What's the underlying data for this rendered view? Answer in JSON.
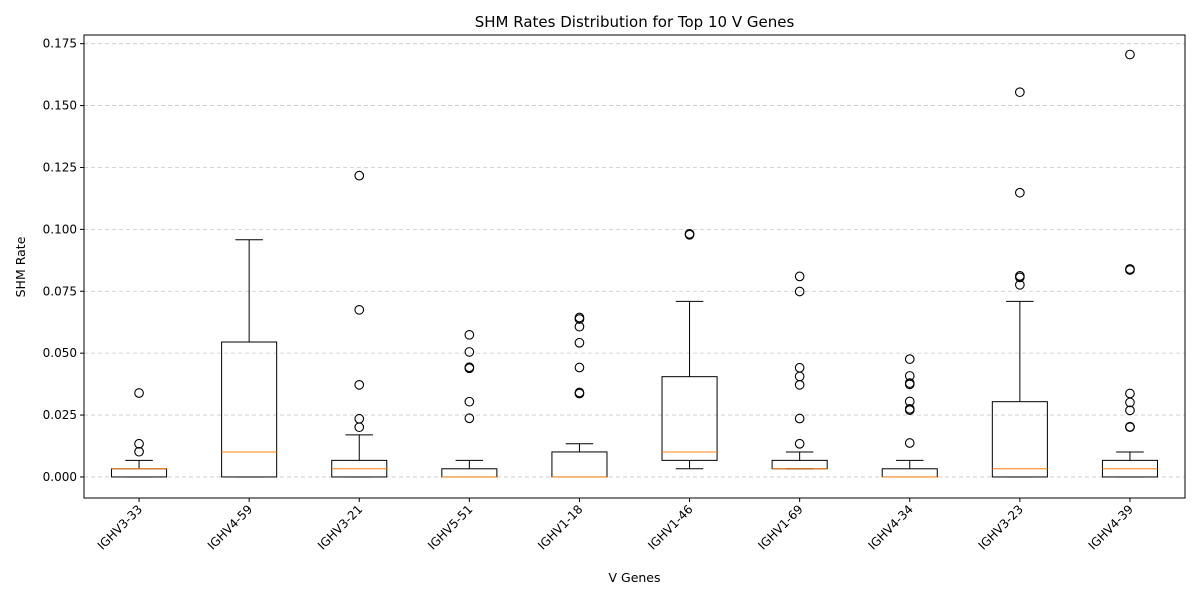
{
  "chart_data": {
    "type": "boxplot",
    "title": "SHM Rates Distribution for Top 10 V Genes",
    "xlabel": "V Genes",
    "ylabel": "SHM Rate",
    "ylim": [
      -0.0085,
      0.1785
    ],
    "yticks": [
      0.0,
      0.025,
      0.05,
      0.075,
      0.1,
      0.125,
      0.15,
      0.175
    ],
    "ytick_labels": [
      "0.000",
      "0.025",
      "0.050",
      "0.075",
      "0.100",
      "0.125",
      "0.150",
      "0.175"
    ],
    "grid": "y-dashed",
    "colors": {
      "box": "#000000",
      "median": "#ff7f0e",
      "grid": "#c8c8c8",
      "flier": "#000000"
    },
    "categories": [
      "IGHV3-33",
      "IGHV4-59",
      "IGHV3-21",
      "IGHV5-51",
      "IGHV1-18",
      "IGHV1-46",
      "IGHV1-69",
      "IGHV4-34",
      "IGHV3-23",
      "IGHV4-39"
    ],
    "boxes": [
      {
        "whislo": 0.0,
        "q1": 0.0,
        "med": 0.0033,
        "q3": 0.0033,
        "whishi": 0.0067,
        "fliers": [
          0.0102,
          0.0134,
          0.0339
        ]
      },
      {
        "whislo": 0.0,
        "q1": 0.0,
        "med": 0.0101,
        "q3": 0.0545,
        "whishi": 0.0958,
        "fliers": []
      },
      {
        "whislo": 0.0,
        "q1": 0.0,
        "med": 0.0033,
        "q3": 0.0067,
        "whishi": 0.017,
        "fliers": [
          0.0201,
          0.0235,
          0.0372,
          0.0675,
          0.1217
        ]
      },
      {
        "whislo": 0.0,
        "q1": 0.0,
        "med": 0.0,
        "q3": 0.0033,
        "whishi": 0.0067,
        "fliers": [
          0.0237,
          0.0304,
          0.0439,
          0.0443,
          0.0505,
          0.0574
        ]
      },
      {
        "whislo": 0.0,
        "q1": 0.0,
        "med": 0.0,
        "q3": 0.0101,
        "whishi": 0.0134,
        "fliers": [
          0.0337,
          0.0341,
          0.0442,
          0.0542,
          0.0607,
          0.0638,
          0.0644
        ]
      },
      {
        "whislo": 0.0033,
        "q1": 0.0067,
        "med": 0.0101,
        "q3": 0.0405,
        "whishi": 0.0709,
        "fliers": [
          0.0978,
          0.0982
        ]
      },
      {
        "whislo": 0.0033,
        "q1": 0.0033,
        "med": 0.0033,
        "q3": 0.0067,
        "whishi": 0.0101,
        "fliers": [
          0.0134,
          0.0236,
          0.0372,
          0.0406,
          0.0441,
          0.0749,
          0.081
        ]
      },
      {
        "whislo": 0.0,
        "q1": 0.0,
        "med": 0.0,
        "q3": 0.0033,
        "whishi": 0.0067,
        "fliers": [
          0.0137,
          0.027,
          0.0275,
          0.0305,
          0.0374,
          0.0379,
          0.0408,
          0.0476
        ]
      },
      {
        "whislo": 0.0,
        "q1": 0.0,
        "med": 0.0033,
        "q3": 0.0304,
        "whishi": 0.0709,
        "fliers": [
          0.0776,
          0.0806,
          0.0812,
          0.1148,
          0.1554
        ]
      },
      {
        "whislo": 0.0,
        "q1": 0.0,
        "med": 0.0033,
        "q3": 0.0067,
        "whishi": 0.0101,
        "fliers": [
          0.0201,
          0.0203,
          0.0269,
          0.0301,
          0.0337,
          0.0836,
          0.084,
          0.1706
        ]
      }
    ]
  }
}
